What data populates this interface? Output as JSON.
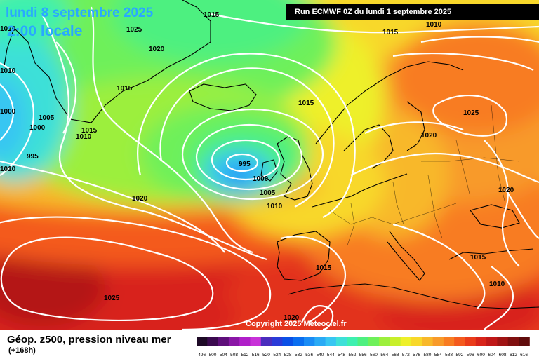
{
  "header": {
    "date_title": "lundi 8 septembre 2025",
    "time_title": "2:00 locale",
    "run_label": "Run ECMWF 0Z du lundi 1 septembre 2025"
  },
  "footer": {
    "title": "Géop. z500, pression niveau mer",
    "lead_time": "(+168h)",
    "copyright": "Copyright 2025 Meteociel.fr"
  },
  "legend": {
    "values": [
      "496",
      "500",
      "504",
      "508",
      "512",
      "516",
      "520",
      "524",
      "528",
      "532",
      "536",
      "540",
      "544",
      "548",
      "552",
      "556",
      "560",
      "564",
      "568",
      "572",
      "576",
      "580",
      "584",
      "588",
      "592",
      "596",
      "600",
      "604",
      "608",
      "612",
      "616"
    ],
    "colors": [
      "#1e0a26",
      "#3b0a4f",
      "#5e0f7a",
      "#8a17a6",
      "#b01fc9",
      "#c832d8",
      "#4a2dbd",
      "#2a3bd8",
      "#0a50e6",
      "#0a6ef0",
      "#1a8cf5",
      "#2aaaf5",
      "#38c6f2",
      "#3ee0d8",
      "#3ef0b0",
      "#4ef080",
      "#6ef05a",
      "#9cef3c",
      "#c8ef2a",
      "#eef02a",
      "#f8d82a",
      "#f8b82a",
      "#f89a2a",
      "#f87c22",
      "#f45a1e",
      "#ea3c1a",
      "#d8241a",
      "#c01818",
      "#a01414",
      "#801010",
      "#600c0c"
    ]
  },
  "map": {
    "isobar_labels": [
      {
        "text": "1015"
      },
      {
        "text": "1025"
      },
      {
        "text": "1020"
      },
      {
        "text": "1015"
      },
      {
        "text": "1010"
      },
      {
        "text": "1005"
      },
      {
        "text": "1000"
      },
      {
        "text": "1015"
      },
      {
        "text": "1010"
      },
      {
        "text": "1000"
      },
      {
        "text": "995"
      },
      {
        "text": "995"
      },
      {
        "text": "1000"
      },
      {
        "text": "1005"
      },
      {
        "text": "1010"
      },
      {
        "text": "1020"
      },
      {
        "text": "1015"
      },
      {
        "text": "1015"
      },
      {
        "text": "1025"
      },
      {
        "text": "1020"
      },
      {
        "text": "1020"
      },
      {
        "text": "1015"
      },
      {
        "text": "1010"
      },
      {
        "text": "1015"
      },
      {
        "text": "1025"
      },
      {
        "text": "1020"
      },
      {
        "text": "1010"
      },
      {
        "text": "1010"
      },
      {
        "text": "1010"
      }
    ]
  }
}
